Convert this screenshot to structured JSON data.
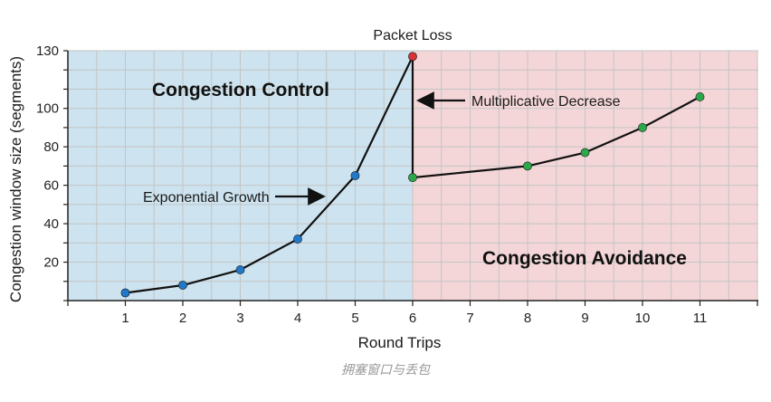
{
  "chart_data": {
    "type": "line",
    "xlabel": "Round Trips",
    "ylabel": "Congestion window size (segments)",
    "xlim": [
      0,
      12
    ],
    "ylim": [
      0,
      130
    ],
    "x_ticks": [
      "1",
      "2",
      "3",
      "4",
      "5",
      "6",
      "7",
      "8",
      "9",
      "10",
      "11"
    ],
    "y_ticks": [
      "20",
      "40",
      "60",
      "80",
      "100",
      "130"
    ],
    "grid": true,
    "regions": [
      {
        "label": "Congestion Control",
        "x_range": [
          0,
          6
        ],
        "color": "#cde3ef"
      },
      {
        "label": "Congestion Avoidance",
        "x_range": [
          6,
          12
        ],
        "color": "#f4d6d8"
      }
    ],
    "series": [
      {
        "points": [
          {
            "x": 1,
            "y": 4,
            "color": "#1f78c8"
          },
          {
            "x": 2,
            "y": 8,
            "color": "#1f78c8"
          },
          {
            "x": 3,
            "y": 16,
            "color": "#1f78c8"
          },
          {
            "x": 4,
            "y": 32,
            "color": "#1f78c8"
          },
          {
            "x": 5,
            "y": 65,
            "color": "#1f78c8"
          },
          {
            "x": 6,
            "y": 127,
            "color": "#d9333a"
          },
          {
            "x": 6,
            "y": 64,
            "color": "#2ba84a"
          },
          {
            "x": 8,
            "y": 70,
            "color": "#2ba84a"
          },
          {
            "x": 9,
            "y": 77,
            "color": "#2ba84a"
          },
          {
            "x": 10,
            "y": 90,
            "color": "#2ba84a"
          },
          {
            "x": 11,
            "y": 106,
            "color": "#2ba84a"
          }
        ]
      }
    ],
    "annotations": {
      "packet_loss": "Packet Loss",
      "multiplicative_decrease": "Multiplicative Decrease",
      "exponential_growth": "Exponential Growth"
    }
  },
  "caption": "拥塞窗口与丢包"
}
